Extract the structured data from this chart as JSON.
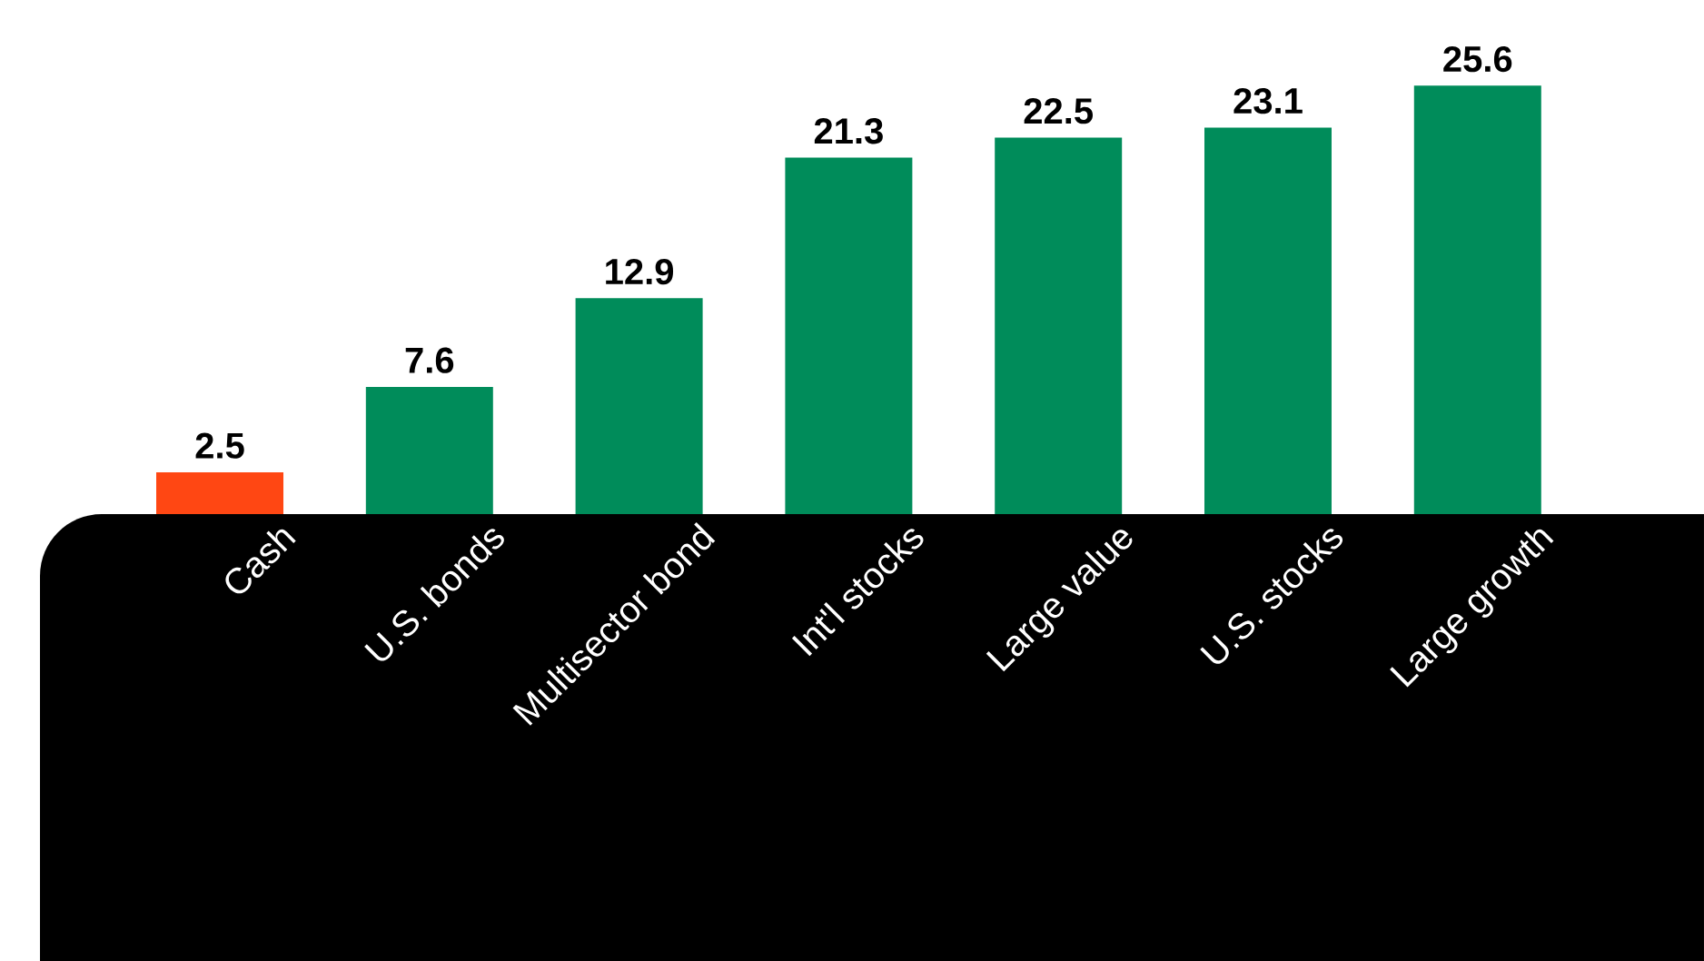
{
  "chart_data": {
    "type": "bar",
    "categories": [
      "Cash",
      "U.S. bonds",
      "Multisector bond",
      "Int'l stocks",
      "Large value",
      "U.S. stocks",
      "Large growth"
    ],
    "values": [
      2.5,
      7.6,
      12.9,
      21.3,
      22.5,
      23.1,
      25.6
    ],
    "colors": [
      "#ff4713",
      "#008c5a",
      "#008c5a",
      "#008c5a",
      "#008c5a",
      "#008c5a",
      "#008c5a"
    ],
    "data_labels": true
  }
}
